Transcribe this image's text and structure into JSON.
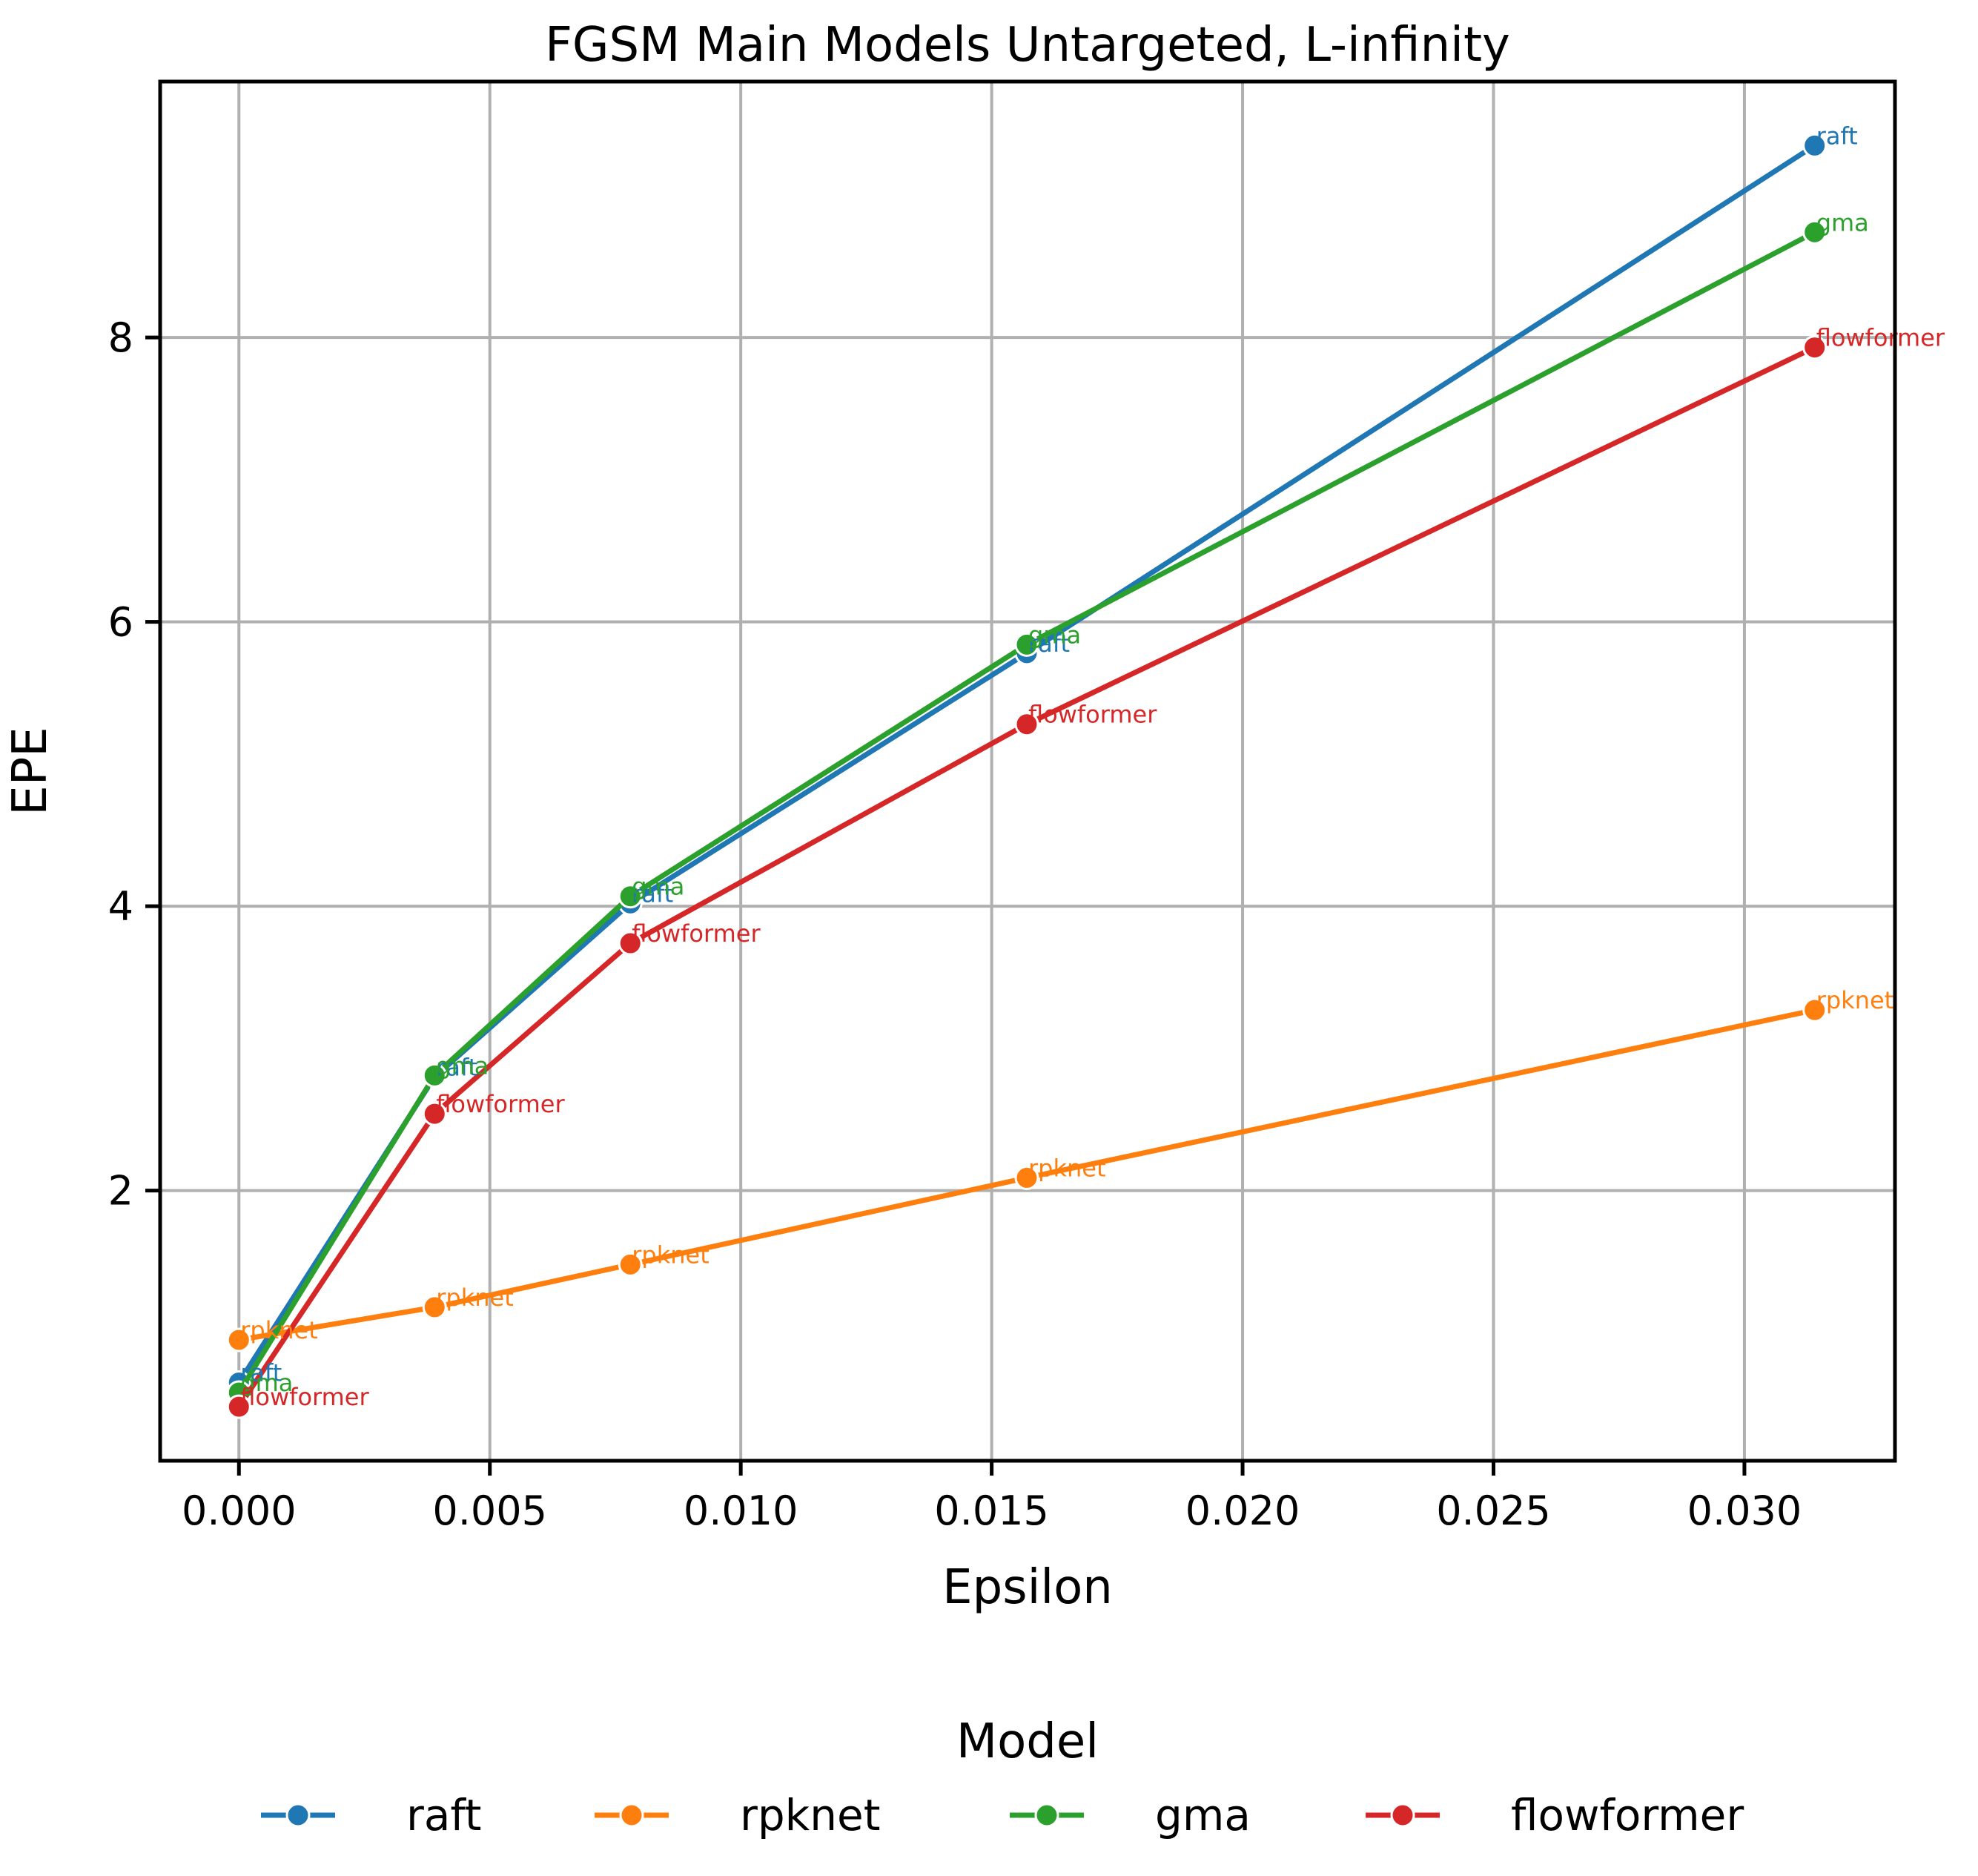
{
  "chart_data": {
    "type": "line",
    "title": "FGSM Main Models Untargeted, L-infinity",
    "xlabel": "Epsilon",
    "ylabel": "EPE",
    "xlim": [
      -0.00157,
      0.033
    ],
    "ylim": [
      0.1,
      9.8
    ],
    "xticks": [
      0.0,
      0.005,
      0.01,
      0.015,
      0.02,
      0.025,
      0.03
    ],
    "xtick_labels": [
      "0.000",
      "0.005",
      "0.010",
      "0.015",
      "0.020",
      "0.025",
      "0.030"
    ],
    "yticks": [
      2,
      4,
      6,
      8
    ],
    "ytick_labels": [
      "2",
      "4",
      "6",
      "8"
    ],
    "grid": true,
    "legend": {
      "title": "Model",
      "placement": "bottom-center",
      "columns": 4
    },
    "x": [
      0.0,
      0.0039,
      0.0078,
      0.0157,
      0.0314
    ],
    "series": [
      {
        "name": "raft",
        "color": "#1f77b4",
        "values": [
          0.65,
          2.8,
          4.02,
          5.78,
          9.35
        ]
      },
      {
        "name": "rpknet",
        "color": "#ff7f0e",
        "values": [
          0.95,
          1.18,
          1.48,
          2.09,
          3.27
        ]
      },
      {
        "name": "gma",
        "color": "#2ca02c",
        "values": [
          0.58,
          2.81,
          4.07,
          5.84,
          8.74
        ]
      },
      {
        "name": "flowformer",
        "color": "#d62728",
        "values": [
          0.48,
          2.54,
          3.74,
          5.28,
          7.93
        ]
      }
    ]
  }
}
